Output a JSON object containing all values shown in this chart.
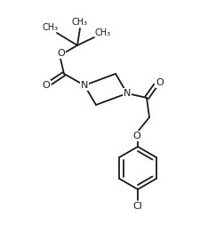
{
  "background_color": "#ffffff",
  "line_color": "#1a1a1a",
  "line_width": 1.3,
  "font_size": 7.5,
  "figsize": [
    2.25,
    2.79
  ],
  "dpi": 100,
  "xlim": [
    0,
    225
  ],
  "ylim": [
    0,
    279
  ]
}
